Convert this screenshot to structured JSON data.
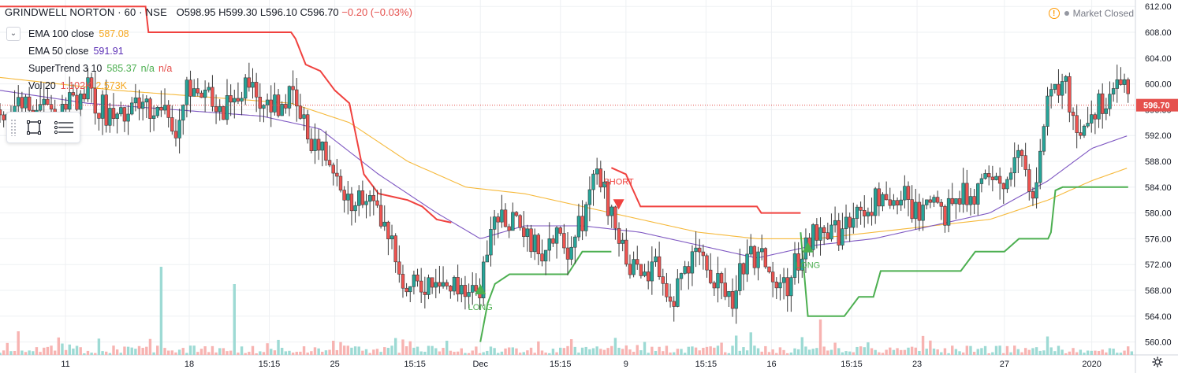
{
  "header": {
    "symbol": "GRINDWELL NORTON · 60 · NSE",
    "open": "O598.95",
    "high": "H599.30",
    "low": "L596.10",
    "close": "C596.70",
    "change": "−0.20 (−0.03%)"
  },
  "indicators": [
    {
      "name": "EMA 100 close",
      "value": "587.08",
      "color": "#f6a821"
    },
    {
      "name": "EMA 50 close",
      "value": "591.91",
      "color": "#5b2fb5"
    },
    {
      "name": "SuperTrend 3 10",
      "value": "585.37",
      "extra1": "n/a",
      "extra2": "n/a",
      "color": "#4caf50",
      "extra_color": "#e5504d"
    },
    {
      "name": "Vol 20",
      "value": "1.102K",
      "extra1": "2.573K",
      "color": "#e5504d",
      "extra_color": "#f6a821"
    }
  ],
  "market_status": "Market Closed",
  "icons": {
    "warning": "warning-icon",
    "status_dot": "status-dot-icon",
    "collapse": "chevron-down-icon",
    "rect_tool": "rectangle-tool-icon",
    "lines_tool": "horizontal-lines-tool-icon",
    "settings": "gear-icon"
  },
  "colors": {
    "up": "#26a69a",
    "down": "#ef5350",
    "supertrend_up": "#4caf50",
    "supertrend_down": "#f0423f",
    "ema100": "#f6b93b",
    "ema50": "#7e57c2",
    "price_line": "#e5504d",
    "grid": "#eef0f3"
  },
  "chart_data": {
    "type": "candlestick",
    "symbol": "GRINDWELL NORTON",
    "interval": "60",
    "exchange": "NSE",
    "ylim": [
      558,
      613
    ],
    "y_ticks": [
      612,
      608,
      604,
      600,
      596,
      592,
      588,
      584,
      580,
      576,
      572,
      568,
      564,
      560
    ],
    "x_ticks": [
      {
        "label": "11",
        "x": 4.5
      },
      {
        "label": "18",
        "x": 13
      },
      {
        "label": "15:15",
        "x": 18.5
      },
      {
        "label": "25",
        "x": 23
      },
      {
        "label": "15:15",
        "x": 28.5
      },
      {
        "label": "Dec",
        "x": 33
      },
      {
        "label": "15:15",
        "x": 38.5
      },
      {
        "label": "9",
        "x": 43
      },
      {
        "label": "15:15",
        "x": 48.5
      },
      {
        "label": "16",
        "x": 53
      },
      {
        "label": "15:15",
        "x": 58.5
      },
      {
        "label": "23",
        "x": 63
      },
      {
        "label": "27",
        "x": 69
      },
      {
        "label": "2020",
        "x": 75
      }
    ],
    "last_price": 596.7,
    "last_price_label": "596.70",
    "price_anchors": [
      [
        0,
        596
      ],
      [
        2,
        598
      ],
      [
        4,
        595
      ],
      [
        6,
        599
      ],
      [
        8,
        594
      ],
      [
        10,
        597
      ],
      [
        12,
        593
      ],
      [
        13,
        600
      ],
      [
        15,
        596
      ],
      [
        17,
        599
      ],
      [
        19,
        597
      ],
      [
        20,
        598
      ],
      [
        21,
        593
      ],
      [
        22,
        590
      ],
      [
        23,
        588
      ],
      [
        24,
        582
      ],
      [
        25,
        583
      ],
      [
        26,
        579
      ],
      [
        27,
        575
      ],
      [
        28,
        568
      ],
      [
        29,
        569
      ],
      [
        30,
        571
      ],
      [
        31,
        568
      ],
      [
        32,
        569
      ],
      [
        33,
        566
      ],
      [
        33.5,
        576
      ],
      [
        34,
        580
      ],
      [
        35,
        579
      ],
      [
        36,
        576
      ],
      [
        37,
        574
      ],
      [
        38,
        576
      ],
      [
        39,
        575
      ],
      [
        40,
        579
      ],
      [
        41,
        587
      ],
      [
        42,
        579
      ],
      [
        43,
        574
      ],
      [
        44,
        569
      ],
      [
        45,
        572
      ],
      [
        46,
        566
      ],
      [
        47,
        571
      ],
      [
        48,
        573
      ],
      [
        49,
        570
      ],
      [
        50,
        565
      ],
      [
        51,
        571
      ],
      [
        52,
        574
      ],
      [
        53,
        570
      ],
      [
        54,
        568
      ],
      [
        55,
        574
      ],
      [
        56,
        577
      ],
      [
        57,
        576
      ],
      [
        58,
        578
      ],
      [
        59,
        580
      ],
      [
        60,
        582
      ],
      [
        61,
        580
      ],
      [
        62,
        583
      ],
      [
        63,
        580
      ],
      [
        64,
        582
      ],
      [
        65,
        580
      ],
      [
        66,
        583
      ],
      [
        67,
        582
      ],
      [
        68,
        584
      ],
      [
        69,
        586
      ],
      [
        70,
        589
      ],
      [
        71,
        584
      ],
      [
        72,
        597
      ],
      [
        73,
        601
      ],
      [
        74,
        593
      ],
      [
        75,
        596
      ],
      [
        76,
        598
      ],
      [
        77,
        601
      ],
      [
        77.5,
        597
      ]
    ],
    "ema50_anchors": [
      [
        0,
        599
      ],
      [
        6,
        597
      ],
      [
        12,
        596
      ],
      [
        18,
        595
      ],
      [
        22,
        593
      ],
      [
        26,
        586
      ],
      [
        30,
        580
      ],
      [
        33,
        576
      ],
      [
        36,
        578
      ],
      [
        40,
        578
      ],
      [
        44,
        577
      ],
      [
        48,
        575
      ],
      [
        52,
        573
      ],
      [
        56,
        575
      ],
      [
        60,
        576
      ],
      [
        64,
        578
      ],
      [
        68,
        580
      ],
      [
        72,
        585
      ],
      [
        75,
        590
      ],
      [
        77.5,
        592
      ]
    ],
    "ema100_anchors": [
      [
        0,
        601
      ],
      [
        8,
        599
      ],
      [
        14,
        598
      ],
      [
        20,
        597
      ],
      [
        24,
        594
      ],
      [
        28,
        588
      ],
      [
        32,
        584
      ],
      [
        36,
        583
      ],
      [
        40,
        581
      ],
      [
        44,
        579
      ],
      [
        48,
        577
      ],
      [
        52,
        576
      ],
      [
        56,
        576
      ],
      [
        60,
        577
      ],
      [
        64,
        578
      ],
      [
        68,
        579
      ],
      [
        72,
        582
      ],
      [
        75,
        585
      ],
      [
        77.5,
        587
      ]
    ],
    "supertrend": [
      {
        "dir": "down",
        "points": [
          [
            0,
            612
          ],
          [
            10,
            612
          ],
          [
            10.2,
            608
          ],
          [
            20,
            608
          ],
          [
            20.3,
            607
          ],
          [
            21,
            603
          ],
          [
            22,
            602
          ],
          [
            23,
            599
          ],
          [
            24,
            597
          ],
          [
            25,
            586
          ],
          [
            26,
            583
          ],
          [
            28,
            582
          ],
          [
            29,
            581
          ],
          [
            30,
            579
          ],
          [
            31,
            578.5
          ]
        ]
      },
      {
        "dir": "up",
        "points": [
          [
            33,
            560
          ],
          [
            33.5,
            566
          ],
          [
            34,
            569
          ],
          [
            35,
            570.5
          ],
          [
            39,
            570.5
          ],
          [
            40,
            574
          ],
          [
            42,
            574
          ]
        ]
      },
      {
        "dir": "down",
        "points": [
          [
            42,
            587
          ],
          [
            43,
            586
          ],
          [
            44,
            581
          ],
          [
            52,
            581
          ],
          [
            52.3,
            580
          ],
          [
            55,
            580
          ]
        ]
      },
      {
        "dir": "up",
        "points": [
          [
            55,
            577
          ],
          [
            55.5,
            564
          ],
          [
            58,
            564
          ],
          [
            59,
            567
          ],
          [
            60,
            567
          ],
          [
            60.5,
            571
          ],
          [
            66,
            571
          ],
          [
            67,
            574
          ],
          [
            69,
            574
          ],
          [
            70,
            576
          ],
          [
            72,
            576
          ],
          [
            72.2,
            577
          ],
          [
            72.5,
            583.5
          ],
          [
            73,
            584
          ],
          [
            77.5,
            584
          ]
        ]
      }
    ],
    "signals": [
      {
        "label": "LONG",
        "x": 33,
        "y": 568,
        "dir": "up"
      },
      {
        "label": "SHORT",
        "x": 42.5,
        "y": 581.5,
        "dir": "down"
      },
      {
        "label": "LONG",
        "x": 55.5,
        "y": 574.5,
        "dir": "up"
      }
    ]
  }
}
